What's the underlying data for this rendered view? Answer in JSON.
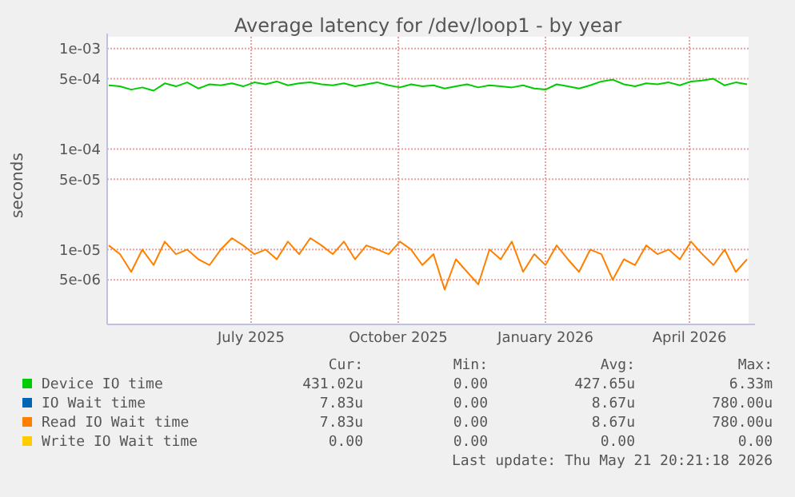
{
  "chart_data": {
    "type": "line",
    "title": "Average latency for /dev/loop1 - by year",
    "ylabel": "seconds",
    "log": "y",
    "grid": true,
    "legend": "bottom",
    "x": [
      "2025-04-03",
      "2025-04-10",
      "2025-04-17",
      "2025-04-24",
      "2025-05-01",
      "2025-05-08",
      "2025-05-15",
      "2025-05-22",
      "2025-05-29",
      "2025-06-05",
      "2025-06-12",
      "2025-06-19",
      "2025-06-26",
      "2025-07-03",
      "2025-07-10",
      "2025-07-17",
      "2025-07-24",
      "2025-07-31",
      "2025-08-07",
      "2025-08-14",
      "2025-08-21",
      "2025-08-28",
      "2025-09-04",
      "2025-09-11",
      "2025-09-18",
      "2025-09-25",
      "2025-10-02",
      "2025-10-09",
      "2025-10-16",
      "2025-10-23",
      "2025-10-30",
      "2025-11-06",
      "2025-11-13",
      "2025-11-20",
      "2025-11-27",
      "2025-12-04",
      "2025-12-11",
      "2025-12-18",
      "2025-12-25",
      "2026-01-01",
      "2026-01-08",
      "2026-01-15",
      "2026-01-22",
      "2026-01-29",
      "2026-02-05",
      "2026-02-12",
      "2026-02-19",
      "2026-02-26",
      "2026-03-05",
      "2026-03-12",
      "2026-03-19",
      "2026-03-26",
      "2026-04-02",
      "2026-04-09",
      "2026-04-16",
      "2026-04-23",
      "2026-04-30",
      "2026-05-07"
    ],
    "xlim": [
      "2025-04-02",
      "2026-05-08"
    ],
    "xticks": [
      {
        "value": "2025-07-01",
        "label": "July 2025"
      },
      {
        "value": "2025-10-01",
        "label": "October 2025"
      },
      {
        "value": "2026-01-01",
        "label": "January 2026"
      },
      {
        "value": "2026-04-01",
        "label": "April 2026"
      }
    ],
    "ylim": [
      1.8e-06,
      0.00105
    ],
    "yticks": [
      {
        "value": 0.001,
        "label": "1e-03"
      },
      {
        "value": 0.0005,
        "label": "5e-04"
      },
      {
        "value": 0.0001,
        "label": "1e-04"
      },
      {
        "value": 5e-05,
        "label": "5e-05"
      },
      {
        "value": 1e-05,
        "label": "1e-05"
      },
      {
        "value": 5e-06,
        "label": "5e-06"
      }
    ],
    "series": [
      {
        "name": "Device IO time",
        "color": "#00cc00",
        "values": [
          0.00043,
          0.00042,
          0.00039,
          0.00041,
          0.00038,
          0.00045,
          0.00042,
          0.00046,
          0.0004,
          0.00044,
          0.00043,
          0.00045,
          0.00042,
          0.00046,
          0.00044,
          0.00047,
          0.00043,
          0.00045,
          0.00046,
          0.00044,
          0.00043,
          0.00045,
          0.00042,
          0.00044,
          0.00046,
          0.00043,
          0.00041,
          0.00044,
          0.00042,
          0.00043,
          0.0004,
          0.00042,
          0.00044,
          0.00041,
          0.00043,
          0.00042,
          0.00041,
          0.00043,
          0.0004,
          0.00039,
          0.00044,
          0.00042,
          0.0004,
          0.00043,
          0.00047,
          0.00049,
          0.00044,
          0.00042,
          0.00045,
          0.00044,
          0.00046,
          0.00043,
          0.00047,
          0.00048,
          0.0005,
          0.00043,
          0.00046,
          0.00044
        ]
      },
      {
        "name": "IO Wait time",
        "color": "#0066b3",
        "values": [
          null,
          null,
          null,
          null,
          null,
          null,
          null,
          null,
          null,
          null,
          null,
          null,
          null,
          null,
          null,
          null,
          null,
          null,
          null,
          null,
          null,
          null,
          null,
          null,
          null,
          null,
          null,
          null,
          null,
          null,
          null,
          null,
          null,
          null,
          null,
          null,
          null,
          null,
          null,
          null,
          null,
          null,
          null,
          null,
          null,
          null,
          null,
          null,
          null,
          null,
          null,
          null,
          null,
          null,
          null,
          null,
          null,
          null
        ]
      },
      {
        "name": "Read IO Wait time",
        "color": "#ff8000",
        "values": [
          1.1e-05,
          9e-06,
          6e-06,
          1e-05,
          7e-06,
          1.2e-05,
          9e-06,
          1e-05,
          8e-06,
          7e-06,
          1e-05,
          1.3e-05,
          1.1e-05,
          9e-06,
          1e-05,
          8e-06,
          1.2e-05,
          9e-06,
          1.3e-05,
          1.1e-05,
          9e-06,
          1.2e-05,
          8e-06,
          1.1e-05,
          1e-05,
          9e-06,
          1.2e-05,
          1e-05,
          7e-06,
          9e-06,
          4e-06,
          8e-06,
          6e-06,
          4.5e-06,
          1e-05,
          8e-06,
          1.2e-05,
          6e-06,
          9e-06,
          7e-06,
          1.1e-05,
          8e-06,
          6e-06,
          1e-05,
          9e-06,
          5e-06,
          8e-06,
          7e-06,
          1.1e-05,
          9e-06,
          1e-05,
          8e-06,
          1.2e-05,
          9e-06,
          7e-06,
          1e-05,
          6e-06,
          8e-06
        ]
      },
      {
        "name": "Write IO Wait time",
        "color": "#ffcc00",
        "values": [
          null,
          null,
          null,
          null,
          null,
          null,
          null,
          null,
          null,
          null,
          null,
          null,
          null,
          null,
          null,
          null,
          null,
          null,
          null,
          null,
          null,
          null,
          null,
          null,
          null,
          null,
          null,
          null,
          null,
          null,
          null,
          null,
          null,
          null,
          null,
          null,
          null,
          null,
          null,
          null,
          null,
          null,
          null,
          null,
          null,
          null,
          null,
          null,
          null,
          null,
          null,
          null,
          null,
          null,
          null,
          null,
          null,
          null
        ]
      }
    ],
    "annotations": [
      "Cur:",
      "Min:",
      "Avg:",
      "Max:",
      "431.02u",
      "0.00",
      "427.65u",
      "6.33m",
      "7.83u",
      "0.00",
      "8.67u",
      "780.00u",
      "7.83u",
      "0.00",
      "8.67u",
      "780.00u",
      "0.00",
      "0.00",
      "0.00",
      "0.00",
      "Last update: Thu May 21 20:21:18 2026"
    ]
  }
}
